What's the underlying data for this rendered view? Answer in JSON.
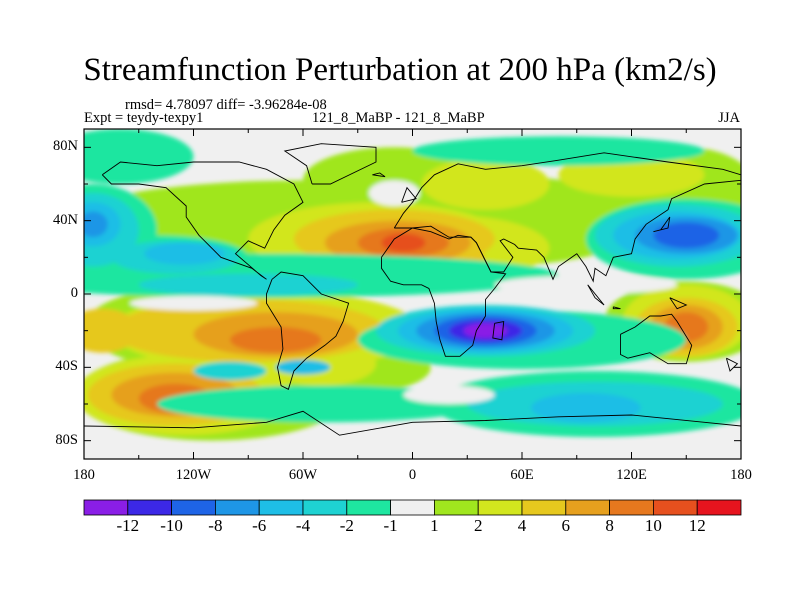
{
  "title": "Streamfunction Perturbation at 200 hPa (km2/s)",
  "stats_line": "rmsd= 4.78097 diff= -3.96284e-08",
  "experiment": "Expt = teydy-texpy1",
  "case": "121_8_MaBP - 121_8_MaBP",
  "season": "JJA",
  "lat_ticks": [
    "80N",
    "40N",
    "0",
    "40S",
    "80S"
  ],
  "lon_ticks": [
    "180",
    "120W",
    "60W",
    "0",
    "60E",
    "120E",
    "180"
  ],
  "colorbar": {
    "colors": [
      "#8a1ee6",
      "#3c28e6",
      "#1e64e6",
      "#1e96e6",
      "#1ebee6",
      "#1ed2d2",
      "#1ee6a0",
      "#f0f0f0",
      "#a0e61e",
      "#d2e61e",
      "#e6c81e",
      "#e6a01e",
      "#e6781e",
      "#e6501e",
      "#e6141e"
    ],
    "labels": [
      "-12",
      "-10",
      "-8",
      "-6",
      "-4",
      "-2",
      "-1",
      "1",
      "2",
      "4",
      "6",
      "8",
      "10",
      "12"
    ]
  },
  "chart_data": {
    "type": "heatmap",
    "title": "Streamfunction Perturbation at 200 hPa (km2/s)",
    "x_range": [
      -180,
      180
    ],
    "y_range": [
      -90,
      90
    ],
    "levels": [
      -12,
      -10,
      -8,
      -6,
      -4,
      -2,
      -1,
      1,
      2,
      4,
      6,
      8,
      10,
      12
    ],
    "features": [
      {
        "lon": 40,
        "lat": -20,
        "value": -13,
        "desc": "minimum"
      },
      {
        "lon": -5,
        "lat": 28,
        "value": 9,
        "desc": "maximum"
      },
      {
        "lon": 150,
        "lat": -15,
        "value": 9
      },
      {
        "lon": -80,
        "lat": -20,
        "value": 8
      },
      {
        "lon": -130,
        "lat": -55,
        "value": 7
      },
      {
        "lon": 150,
        "lat": 30,
        "value": -9
      },
      {
        "lon": -175,
        "lat": 35,
        "value": -7
      },
      {
        "lon": -120,
        "lat": 20,
        "value": -6
      },
      {
        "lon": 90,
        "lat": -60,
        "value": -4
      }
    ]
  }
}
